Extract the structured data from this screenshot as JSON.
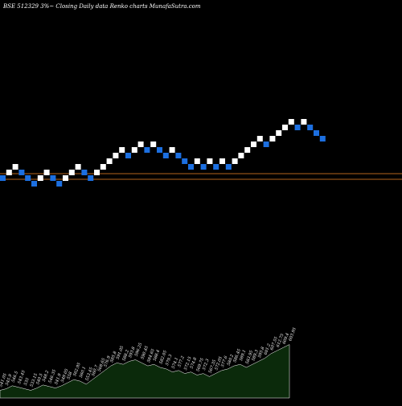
{
  "header": {
    "title": "BSE 512329 3%~   Closing Daily data  Renko  charts MunafaSutra.com"
  },
  "colors": {
    "background": "#000000",
    "brick_up": "#ffffff",
    "brick_down": "#1c6fe0",
    "reference_line": "#b5651d",
    "volume_fill": "#0b2a0b",
    "volume_stroke": "#ffffff"
  },
  "chart_data": [
    {
      "type": "renko",
      "title": "BSE 512329 3%~   Closing Daily data  Renko  charts MunafaSutra.com",
      "brick_size_percent": 3,
      "reference_lines": [
        1,
        0
      ],
      "bricks": [
        {
          "level": 0,
          "dir": "down"
        },
        {
          "level": 1,
          "dir": "up"
        },
        {
          "level": 2,
          "dir": "up"
        },
        {
          "level": 1,
          "dir": "down"
        },
        {
          "level": 0,
          "dir": "down"
        },
        {
          "level": -1,
          "dir": "down"
        },
        {
          "level": 0,
          "dir": "up"
        },
        {
          "level": 1,
          "dir": "up"
        },
        {
          "level": 0,
          "dir": "down"
        },
        {
          "level": -1,
          "dir": "down"
        },
        {
          "level": 0,
          "dir": "up"
        },
        {
          "level": 1,
          "dir": "up"
        },
        {
          "level": 2,
          "dir": "up"
        },
        {
          "level": 1,
          "dir": "down"
        },
        {
          "level": 0,
          "dir": "down"
        },
        {
          "level": 1,
          "dir": "up"
        },
        {
          "level": 2,
          "dir": "up"
        },
        {
          "level": 3,
          "dir": "up"
        },
        {
          "level": 4,
          "dir": "up"
        },
        {
          "level": 5,
          "dir": "up"
        },
        {
          "level": 4,
          "dir": "down"
        },
        {
          "level": 5,
          "dir": "up"
        },
        {
          "level": 6,
          "dir": "up"
        },
        {
          "level": 5,
          "dir": "down"
        },
        {
          "level": 6,
          "dir": "up"
        },
        {
          "level": 5,
          "dir": "down"
        },
        {
          "level": 4,
          "dir": "down"
        },
        {
          "level": 5,
          "dir": "up"
        },
        {
          "level": 4,
          "dir": "down"
        },
        {
          "level": 3,
          "dir": "down"
        },
        {
          "level": 2,
          "dir": "down"
        },
        {
          "level": 3,
          "dir": "up"
        },
        {
          "level": 2,
          "dir": "down"
        },
        {
          "level": 3,
          "dir": "up"
        },
        {
          "level": 2,
          "dir": "down"
        },
        {
          "level": 3,
          "dir": "up"
        },
        {
          "level": 2,
          "dir": "down"
        },
        {
          "level": 3,
          "dir": "up"
        },
        {
          "level": 4,
          "dir": "up"
        },
        {
          "level": 5,
          "dir": "up"
        },
        {
          "level": 6,
          "dir": "up"
        },
        {
          "level": 7,
          "dir": "up"
        },
        {
          "level": 6,
          "dir": "down"
        },
        {
          "level": 7,
          "dir": "up"
        },
        {
          "level": 8,
          "dir": "up"
        },
        {
          "level": 9,
          "dir": "up"
        },
        {
          "level": 10,
          "dir": "up"
        },
        {
          "level": 9,
          "dir": "down"
        },
        {
          "level": 10,
          "dir": "up"
        },
        {
          "level": 9,
          "dir": "down"
        },
        {
          "level": 8,
          "dir": "down"
        },
        {
          "level": 7,
          "dir": "down"
        }
      ]
    },
    {
      "type": "area",
      "x": [
        1,
        2,
        3,
        4,
        5,
        6,
        7,
        8,
        9,
        10,
        11,
        12,
        13,
        14,
        15,
        16,
        17,
        18,
        19,
        20,
        21,
        22,
        23,
        24,
        25,
        26,
        27,
        28,
        29,
        30,
        31,
        32,
        33,
        34,
        35,
        36,
        37,
        38,
        39,
        40,
        41,
        42,
        43,
        44,
        45,
        46,
        47,
        48
      ],
      "values": [
        10,
        12,
        16,
        14,
        12,
        10,
        13,
        17,
        15,
        13,
        16,
        20,
        24,
        22,
        18,
        24,
        30,
        36,
        42,
        46,
        44,
        48,
        50,
        46,
        42,
        44,
        40,
        38,
        34,
        36,
        32,
        34,
        30,
        32,
        28,
        32,
        36,
        38,
        42,
        44,
        40,
        44,
        48,
        52,
        58,
        62,
        66,
        70
      ],
      "labels": [
        "541.05",
        "545.9",
        "546.5",
        "543.45",
        "535",
        "533.15",
        "540.5",
        "548.2",
        "546.35",
        "541.9",
        "549.05",
        "558",
        "562.95",
        "560.1",
        "553.45",
        "560.7",
        "568.65",
        "576.9",
        "585.8",
        "591.05",
        "588.2",
        "593.8",
        "596.25",
        "590.45",
        "584.65",
        "588.4",
        "582.05",
        "579.3",
        "574.1",
        "577.2",
        "572.15",
        "574.8",
        "569.75",
        "572.3",
        "567.35",
        "572.05",
        "577.6",
        "580.2",
        "586.45",
        "589.1",
        "583.95",
        "589.3",
        "595.8",
        "601.2",
        "607.55",
        "612.75",
        "609.4",
        "603.95"
      ]
    }
  ]
}
